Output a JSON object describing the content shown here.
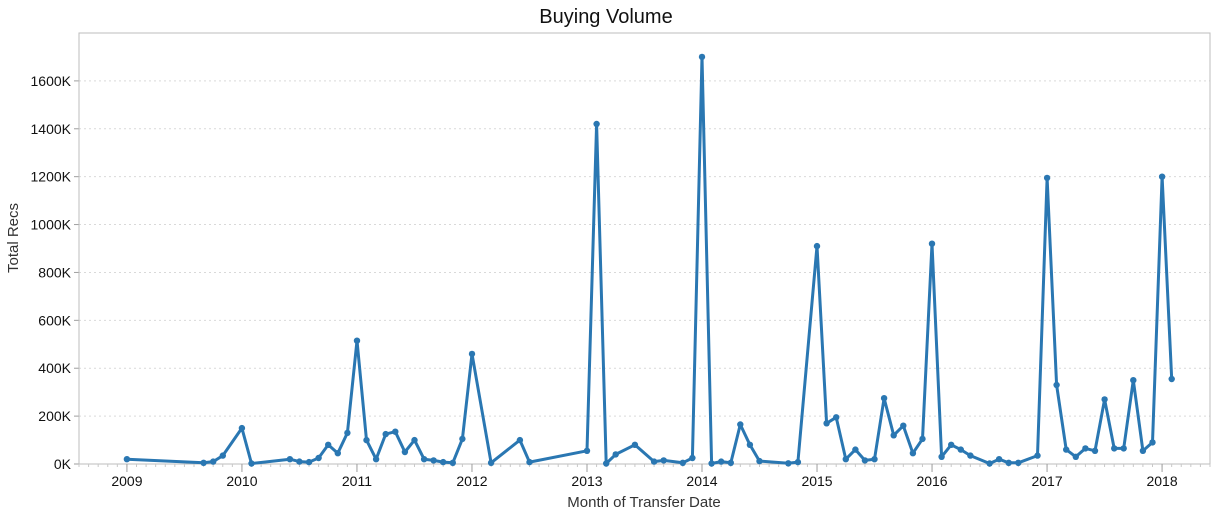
{
  "chart_data": {
    "type": "line",
    "title": "Buying Volume",
    "xlabel": "Month of Transfer Date",
    "ylabel": "Total Recs",
    "x_tick_labels": [
      "2009",
      "2010",
      "2011",
      "2012",
      "2013",
      "2014",
      "2015",
      "2016",
      "2017",
      "2018"
    ],
    "y_tick_labels": [
      "0K",
      "200K",
      "400K",
      "600K",
      "800K",
      "1000K",
      "1200K",
      "1400K",
      "1600K"
    ],
    "ylim": [
      0,
      1800000
    ],
    "xlim": [
      "2008-08",
      "2018-06"
    ],
    "grid": true,
    "color": "#2a77b2",
    "series": [
      {
        "x": [
          "2009-01",
          "2009-09",
          "2009-10",
          "2009-11",
          "2010-01",
          "2010-02",
          "2010-06",
          "2010-07",
          "2010-08",
          "2010-09",
          "2010-10",
          "2010-11",
          "2010-12",
          "2011-01",
          "2011-02",
          "2011-03",
          "2011-04",
          "2011-05",
          "2011-06",
          "2011-07",
          "2011-08",
          "2011-09",
          "2011-10",
          "2011-11",
          "2011-12",
          "2012-01",
          "2012-03",
          "2012-06",
          "2012-07",
          "2013-01",
          "2013-02",
          "2013-03",
          "2013-04",
          "2013-06",
          "2013-08",
          "2013-09",
          "2013-11",
          "2013-12",
          "2014-01",
          "2014-02",
          "2014-03",
          "2014-04",
          "2014-05",
          "2014-06",
          "2014-07",
          "2014-10",
          "2014-11",
          "2015-01",
          "2015-02",
          "2015-03",
          "2015-04",
          "2015-05",
          "2015-06",
          "2015-07",
          "2015-08",
          "2015-09",
          "2015-10",
          "2015-11",
          "2015-12",
          "2016-01",
          "2016-02",
          "2016-03",
          "2016-04",
          "2016-05",
          "2016-07",
          "2016-08",
          "2016-09",
          "2016-10",
          "2016-12",
          "2017-01",
          "2017-02",
          "2017-03",
          "2017-04",
          "2017-05",
          "2017-06",
          "2017-07",
          "2017-08",
          "2017-09",
          "2017-10",
          "2017-11",
          "2017-12",
          "2018-01",
          "2018-02"
        ],
        "values": [
          20000,
          5000,
          10000,
          35000,
          150000,
          2000,
          20000,
          10000,
          8000,
          25000,
          80000,
          45000,
          130000,
          515000,
          100000,
          20000,
          125000,
          135000,
          50000,
          100000,
          20000,
          15000,
          8000,
          5000,
          105000,
          460000,
          5000,
          100000,
          8000,
          55000,
          1420000,
          2000,
          40000,
          80000,
          10000,
          15000,
          5000,
          25000,
          1700000,
          2000,
          10000,
          5000,
          165000,
          80000,
          12000,
          3000,
          8000,
          910000,
          170000,
          195000,
          20000,
          60000,
          15000,
          20000,
          275000,
          120000,
          160000,
          45000,
          105000,
          920000,
          30000,
          80000,
          60000,
          35000,
          2000,
          20000,
          5000,
          5000,
          35000,
          1195000,
          330000,
          60000,
          30000,
          65000,
          55000,
          270000,
          65000,
          65000,
          350000,
          55000,
          90000,
          1200000,
          355000
        ]
      }
    ]
  }
}
